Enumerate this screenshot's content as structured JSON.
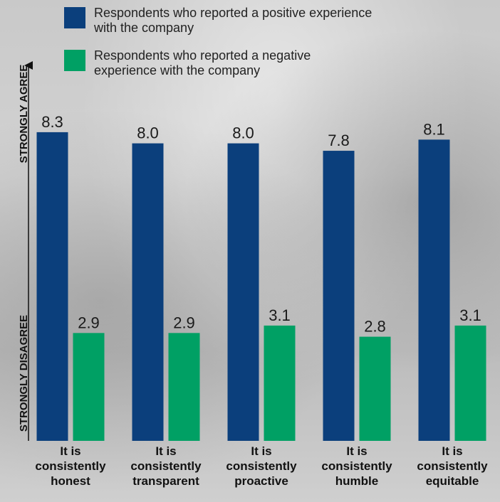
{
  "chart_data": {
    "type": "bar",
    "y_axis_labels": {
      "top": "STRONGLY AGREE",
      "bottom": "STRONGLY DISAGREE"
    },
    "categories": [
      [
        "It is",
        "consistently",
        "honest"
      ],
      [
        "It is",
        "consistently",
        "transparent"
      ],
      [
        "It is",
        "consistently",
        "proactive"
      ],
      [
        "It is",
        "consistently",
        "humble"
      ],
      [
        "It is",
        "consistently",
        "equitable"
      ]
    ],
    "series": [
      {
        "name": "Respondents who reported a positive experience with the company",
        "color": "#0b3f7c",
        "values": [
          8.3,
          8.0,
          8.0,
          7.8,
          8.1
        ],
        "value_labels": [
          "8.3",
          "8.0",
          "8.0",
          "7.8",
          "8.1"
        ]
      },
      {
        "name": "Respondents who reported a negative experience with the company",
        "color": "#00a064",
        "values": [
          2.9,
          2.9,
          3.1,
          2.8,
          3.1
        ],
        "value_labels": [
          "2.9",
          "2.9",
          "3.1",
          "2.8",
          "3.1"
        ]
      }
    ],
    "ylim": [
      0,
      10
    ]
  }
}
